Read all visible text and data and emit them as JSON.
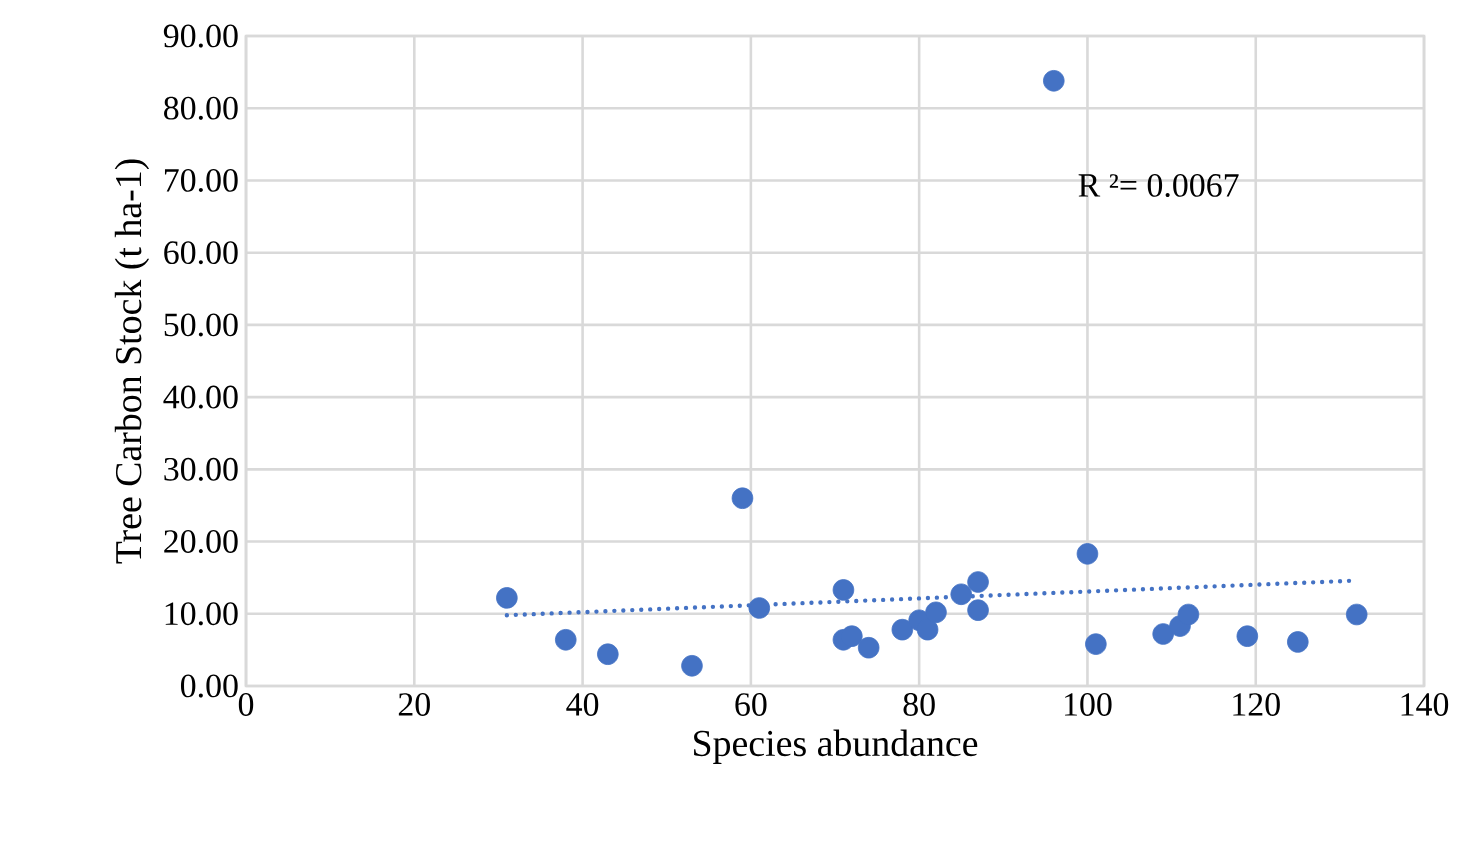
{
  "chart_data": {
    "type": "scatter",
    "xlabel": "Species abundance",
    "ylabel": "Tree Carbon Stock (t ha-1)",
    "xlim": [
      0,
      140
    ],
    "xticks": [
      0,
      20,
      40,
      60,
      80,
      100,
      120,
      140
    ],
    "ylim": [
      0,
      90
    ],
    "yticks": [
      {
        "value": 0,
        "label": "0.00"
      },
      {
        "value": 10,
        "label": "10.00"
      },
      {
        "value": 20,
        "label": "20.00"
      },
      {
        "value": 30,
        "label": "30.00"
      },
      {
        "value": 40,
        "label": "40.00"
      },
      {
        "value": 50,
        "label": "50.00"
      },
      {
        "value": 60,
        "label": "60.00"
      },
      {
        "value": 70,
        "label": "70.00"
      },
      {
        "value": 80,
        "label": "80.00"
      },
      {
        "value": 90,
        "label": "90.00"
      }
    ],
    "grid": true,
    "series": [
      {
        "type": "scatter",
        "color": "#4472c4",
        "marker": "circle",
        "x": [
          31,
          38,
          43,
          53,
          59,
          61,
          71,
          71,
          72,
          74,
          78,
          80,
          81,
          82,
          85,
          87,
          87,
          96,
          100,
          101,
          109,
          111,
          112,
          119,
          125,
          132
        ],
        "values": [
          12.2,
          6.4,
          4.4,
          2.8,
          26.0,
          10.8,
          13.3,
          6.4,
          6.9,
          5.3,
          7.8,
          9.1,
          7.8,
          10.2,
          12.7,
          14.4,
          10.5,
          83.8,
          18.3,
          5.8,
          7.2,
          8.3,
          9.9,
          6.9,
          6.1,
          9.9
        ]
      },
      {
        "type": "line",
        "color": "#4472c4",
        "marker": "none",
        "line_style": "dotted",
        "x": [
          31,
          132
        ],
        "values": [
          9.8,
          14.6
        ]
      }
    ],
    "annotations": [
      "R ²= 0.0067"
    ]
  }
}
